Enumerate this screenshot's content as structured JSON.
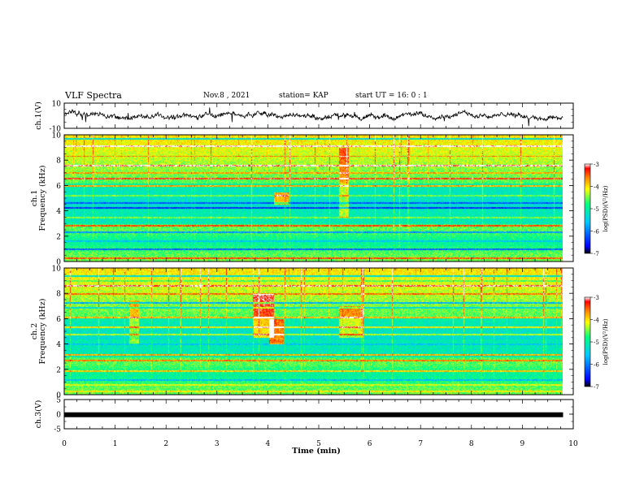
{
  "header": {
    "title": "VLF Spectra",
    "date": "Nov.8 , 2021",
    "station": "station= KAP",
    "start": "start UT = 16: 0 : 1"
  },
  "chart_data": [
    {
      "type": "line",
      "name": "ch1-waveform",
      "ylabel": "ch.1(V)",
      "ylim": [
        -10,
        10
      ],
      "yticks": [
        "10",
        "-10"
      ],
      "xlim": [
        0,
        10
      ]
    },
    {
      "type": "heatmap",
      "name": "ch1-spectrogram",
      "ylabel": "ch.1\nFrequency (kHz)",
      "ylim": [
        0,
        10
      ],
      "yticks": [
        "0",
        "2",
        "4",
        "6",
        "8",
        "10"
      ],
      "xlim": [
        0,
        10
      ],
      "data_extent_min": 9.8,
      "colorbar": {
        "label": "log(PSD)(V²/Hz)",
        "range": [
          -7,
          -3
        ],
        "ticks": [
          "-3",
          "-4",
          "-5",
          "-6",
          "-7"
        ]
      }
    },
    {
      "type": "heatmap",
      "name": "ch2-spectrogram",
      "ylabel": "ch.2\nFrequency (kHz)",
      "ylim": [
        0,
        10
      ],
      "yticks": [
        "0",
        "2",
        "4",
        "6",
        "8",
        "10"
      ],
      "xlim": [
        0,
        10
      ],
      "data_extent_min": 9.8,
      "colorbar": {
        "label": "log(PSD)(V²/Hz)",
        "range": [
          -7,
          -3
        ],
        "ticks": [
          "-3",
          "-4",
          "-5",
          "-6",
          "-7"
        ]
      }
    },
    {
      "type": "line",
      "name": "ch3-waveform",
      "ylabel": "ch.3(V)",
      "ylim": [
        -5,
        5
      ],
      "yticks": [
        "5",
        "0",
        "-5"
      ],
      "level": -0.2,
      "xlim": [
        0,
        10
      ]
    }
  ],
  "xaxis": {
    "label": "Time (min)",
    "ticks": [
      "0",
      "1",
      "2",
      "3",
      "4",
      "5",
      "6",
      "7",
      "8",
      "9",
      "10"
    ]
  },
  "colors": {
    "waveform": "#000000",
    "colormap": [
      "#000000",
      "#0000ff",
      "#00c8ff",
      "#00ff80",
      "#ffff00",
      "#ff8000",
      "#ff0000",
      "#ffffff"
    ]
  }
}
